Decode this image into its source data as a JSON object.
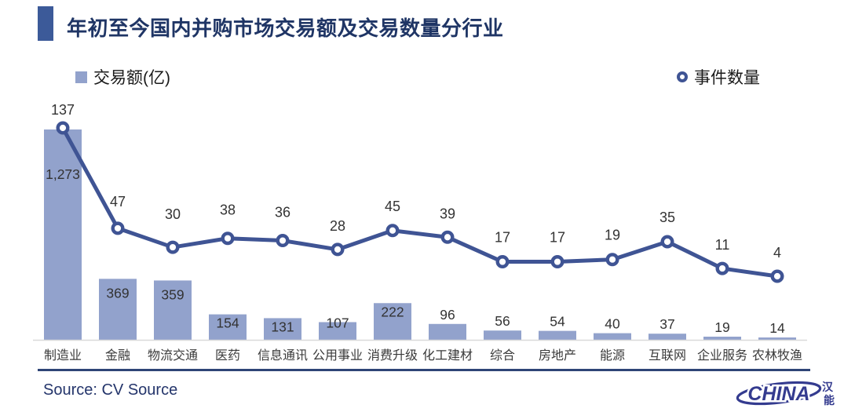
{
  "title": "年初至今国内并购市场交易额及交易数量分行业",
  "legend": {
    "bar_label": "交易额(亿)",
    "line_label": "事件数量"
  },
  "footer": {
    "source": "Source: CV Source"
  },
  "logo": {
    "latin": "CHINA",
    "cn_top": "汉",
    "cn_bottom": "能"
  },
  "colors": {
    "bar_fill": "#92A2CC",
    "line": "#3F5494",
    "title": "#1F3565",
    "accent_bar": "#3C5A99",
    "axis_line": "#D9D9D9",
    "footer_rule": "#2F4577",
    "source_text": "#24356B",
    "label_text": "#333333",
    "logo": "#343B8F"
  },
  "chart_data": {
    "type": "bar+line",
    "title": "年初至今国内并购市场交易额及交易数量分行业",
    "categories": [
      "制造业",
      "金融",
      "物流交通",
      "医药",
      "信息通讯",
      "公用事业",
      "消费升级",
      "化工建材",
      "综合",
      "房地产",
      "能源",
      "互联网",
      "企业服务",
      "农林牧渔"
    ],
    "series": [
      {
        "name": "交易额(亿)",
        "type": "bar",
        "values": [
          1273,
          369,
          359,
          154,
          131,
          107,
          222,
          96,
          56,
          54,
          40,
          37,
          19,
          14
        ],
        "labels": [
          "1,273",
          "369",
          "359",
          "154",
          "131",
          "107",
          "222",
          "96",
          "56",
          "54",
          "40",
          "37",
          "19",
          "14"
        ]
      },
      {
        "name": "事件数量",
        "type": "line",
        "values": [
          137,
          47,
          30,
          38,
          36,
          28,
          45,
          39,
          17,
          17,
          19,
          35,
          11,
          4
        ],
        "labels": [
          "137",
          "47",
          "30",
          "38",
          "36",
          "28",
          "45",
          "39",
          "17",
          "17",
          "19",
          "35",
          "11",
          "4"
        ]
      }
    ],
    "ylim_bar": [
      0,
      1273
    ],
    "grid": false,
    "value_axis_visible": false,
    "legend_position": "top"
  }
}
